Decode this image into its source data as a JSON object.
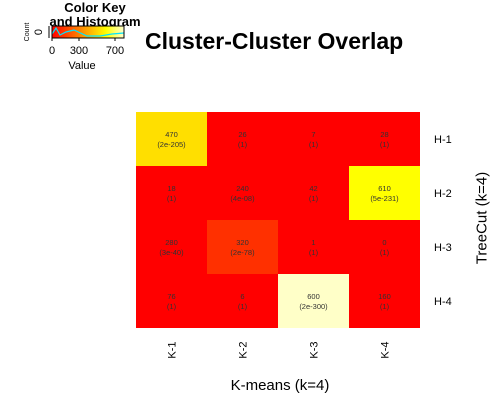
{
  "chart_data": {
    "type": "heatmap",
    "title": "Cluster-Cluster Overlap",
    "xlabel": "K-means (k=4)",
    "ylabel": "TreeCut (k=4)",
    "columns": [
      "K-1",
      "K-2",
      "K-3",
      "K-4"
    ],
    "rows": [
      "H-1",
      "H-2",
      "H-3",
      "H-4"
    ],
    "values": [
      [
        470,
        26,
        7,
        28
      ],
      [
        18,
        240,
        42,
        610
      ],
      [
        280,
        320,
        1,
        0
      ],
      [
        76,
        6,
        600,
        160
      ]
    ],
    "pvalues": [
      [
        "(2e-205)",
        "(1)",
        "(1)",
        "(1)"
      ],
      [
        "(1)",
        "(4e-08)",
        "(1)",
        "(5e-231)"
      ],
      [
        "(3e-40)",
        "(2e-78)",
        "(1)",
        "(1)"
      ],
      [
        "(1)",
        "(1)",
        "(2e-300)",
        "(1)"
      ]
    ],
    "colors": [
      [
        "#ffdf00",
        "#ff0000",
        "#ff0000",
        "#ff0000"
      ],
      [
        "#ff0000",
        "#ff0000",
        "#ff0000",
        "#ffff00"
      ],
      [
        "#ff0000",
        "#ff3000",
        "#ff0000",
        "#ff0000"
      ],
      [
        "#ff0000",
        "#ff0000",
        "#ffffc8",
        "#ff0000"
      ]
    ],
    "color_key": {
      "title": "Color Key\nand Histogram",
      "value_label": "Value",
      "count_label": "Count",
      "count_tick": "0",
      "ticks": [
        0,
        300,
        700
      ],
      "range": [
        0,
        800
      ],
      "gradient": [
        "#ff0000",
        "#ff5500",
        "#ffaa00",
        "#ffff00",
        "#ffffd0"
      ]
    }
  }
}
